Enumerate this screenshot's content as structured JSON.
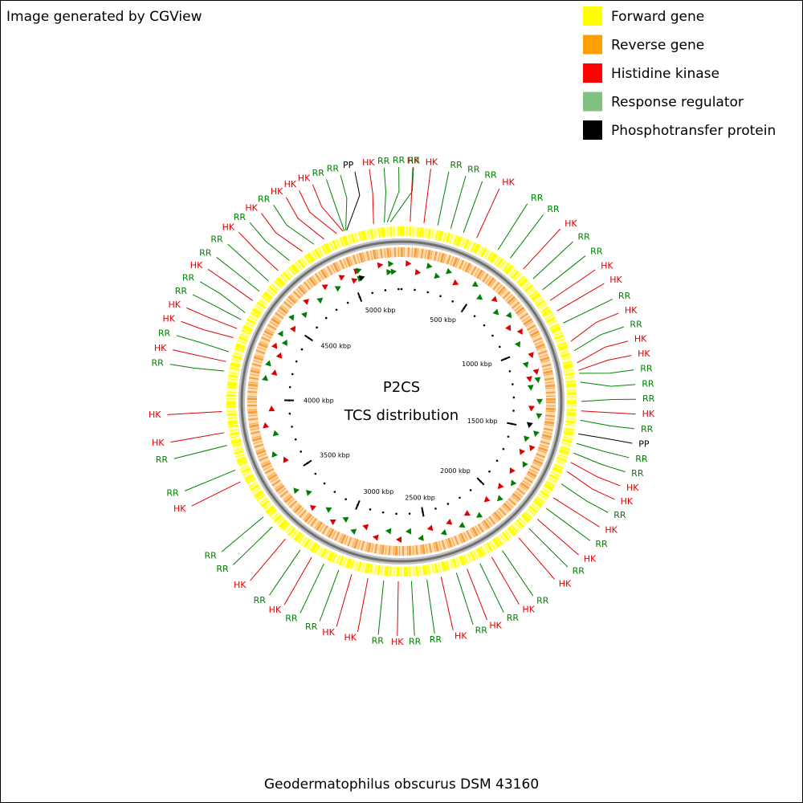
{
  "header": {
    "text": "Image generated by CGView"
  },
  "legend": [
    {
      "label": "Forward gene",
      "color": "#ffff00"
    },
    {
      "label": "Reverse gene",
      "color": "#ffa000"
    },
    {
      "label": "Histidine kinase",
      "color": "#ff0000"
    },
    {
      "label": "Response regulator",
      "color": "#80c080"
    },
    {
      "label": "Phosphotransfer protein",
      "color": "#000000"
    }
  ],
  "center": {
    "title": "P2CS",
    "subtitle": "TCS distribution"
  },
  "footer": {
    "text": "Geodermatophilus obscurus DSM 43160"
  },
  "map": {
    "range": [
      0,
      5322
    ],
    "ticks": [
      {
        "value": 500,
        "label": "500 kbp"
      },
      {
        "value": 1000,
        "label": "1000 kbp"
      },
      {
        "value": 1500,
        "label": "1500 kbp"
      },
      {
        "value": 2000,
        "label": "2000 kbp"
      },
      {
        "value": 2500,
        "label": "2500 kbp"
      },
      {
        "value": 3000,
        "label": "3000 kbp"
      },
      {
        "value": 3500,
        "label": "3500 kbp"
      },
      {
        "value": 4000,
        "label": "4000 kbp"
      },
      {
        "value": 4500,
        "label": "4500 kbp"
      },
      {
        "value": 5000,
        "label": "5000 kbp"
      }
    ],
    "features": [
      {
        "label": "HK",
        "position": 41,
        "color": "#e00000"
      },
      {
        "label": "HK",
        "position": 106,
        "color": "#e00000"
      },
      {
        "label": "RR",
        "position": 172,
        "color": "#008000"
      },
      {
        "label": "RR",
        "position": 235,
        "color": "#008000"
      },
      {
        "label": "RR",
        "position": 298,
        "color": "#008000"
      },
      {
        "label": "HK",
        "position": 365,
        "color": "#e00000"
      },
      {
        "label": "RR",
        "position": 480,
        "color": "#008000"
      },
      {
        "label": "RR",
        "position": 550,
        "color": "#008000"
      },
      {
        "label": "HK",
        "position": 630,
        "color": "#e00000"
      },
      {
        "label": "RR",
        "position": 695,
        "color": "#008000"
      },
      {
        "label": "RR",
        "position": 763,
        "color": "#008000"
      },
      {
        "label": "HK",
        "position": 825,
        "color": "#e00000"
      },
      {
        "label": "HK",
        "position": 884,
        "color": "#e00000"
      },
      {
        "label": "RR",
        "position": 948,
        "color": "#008000"
      },
      {
        "label": "HK",
        "position": 1041,
        "color": "#e00000"
      },
      {
        "label": "RR",
        "position": 1088,
        "color": "#008000"
      },
      {
        "label": "HK",
        "position": 1147,
        "color": "#e00000"
      },
      {
        "label": "HK",
        "position": 1183,
        "color": "#e00000"
      },
      {
        "label": "RR",
        "position": 1197,
        "color": "#008000"
      },
      {
        "label": "RR",
        "position": 1239,
        "color": "#008000"
      },
      {
        "label": "RR",
        "position": 1330,
        "color": "#008000"
      },
      {
        "label": "HK",
        "position": 1375,
        "color": "#e00000"
      },
      {
        "label": "RR",
        "position": 1419,
        "color": "#008000"
      },
      {
        "label": "PP",
        "position": 1484,
        "color": "#000000"
      },
      {
        "label": "RR",
        "position": 1530,
        "color": "#008000"
      },
      {
        "label": "RR",
        "position": 1577,
        "color": "#008000"
      },
      {
        "label": "HK",
        "position": 1623,
        "color": "#e00000"
      },
      {
        "label": "HK",
        "position": 1669,
        "color": "#e00000"
      },
      {
        "label": "RR",
        "position": 1734,
        "color": "#008000"
      },
      {
        "label": "HK",
        "position": 1809,
        "color": "#e00000"
      },
      {
        "label": "RR",
        "position": 1869,
        "color": "#008000"
      },
      {
        "label": "HK",
        "position": 1935,
        "color": "#e00000"
      },
      {
        "label": "RR",
        "position": 1994,
        "color": "#008000"
      },
      {
        "label": "HK",
        "position": 2059,
        "color": "#e00000"
      },
      {
        "label": "RR",
        "position": 2157,
        "color": "#008000"
      },
      {
        "label": "HK",
        "position": 2216,
        "color": "#e00000"
      },
      {
        "label": "RR",
        "position": 2279,
        "color": "#008000"
      },
      {
        "label": "HK",
        "position": 2345,
        "color": "#e00000"
      },
      {
        "label": "RR",
        "position": 2398,
        "color": "#008000"
      },
      {
        "label": "HK",
        "position": 2473,
        "color": "#e00000"
      },
      {
        "label": "RR",
        "position": 2541,
        "color": "#008000"
      },
      {
        "label": "RR",
        "position": 2614,
        "color": "#008000"
      },
      {
        "label": "HK",
        "position": 2676,
        "color": "#e00000"
      },
      {
        "label": "RR",
        "position": 2745,
        "color": "#008000"
      },
      {
        "label": "HK",
        "position": 2820,
        "color": "#e00000"
      },
      {
        "label": "HK",
        "position": 2899,
        "color": "#e00000"
      },
      {
        "label": "RR",
        "position": 2963,
        "color": "#008000"
      },
      {
        "label": "RR",
        "position": 3039,
        "color": "#008000"
      },
      {
        "label": "HK",
        "position": 3104,
        "color": "#e00000"
      },
      {
        "label": "RR",
        "position": 3168,
        "color": "#008000"
      },
      {
        "label": "HK",
        "position": 3255,
        "color": "#e00000"
      },
      {
        "label": "RR",
        "position": 3339,
        "color": "#008000"
      },
      {
        "label": "RR",
        "position": 3402,
        "color": "#008000"
      },
      {
        "label": "HK",
        "position": 3600,
        "color": "#e00000"
      },
      {
        "label": "RR",
        "position": 3660,
        "color": "#008000"
      },
      {
        "label": "RR",
        "position": 3783,
        "color": "#008000"
      },
      {
        "label": "HK",
        "position": 3844,
        "color": "#e00000"
      },
      {
        "label": "HK",
        "position": 3944,
        "color": "#e00000"
      },
      {
        "label": "RR",
        "position": 4136,
        "color": "#008000"
      },
      {
        "label": "HK",
        "position": 4181,
        "color": "#e00000"
      },
      {
        "label": "RR",
        "position": 4229,
        "color": "#008000"
      },
      {
        "label": "HK",
        "position": 4299,
        "color": "#e00000"
      },
      {
        "label": "HK",
        "position": 4345,
        "color": "#e00000"
      },
      {
        "label": "RR",
        "position": 4391,
        "color": "#008000"
      },
      {
        "label": "RR",
        "position": 4429,
        "color": "#008000"
      },
      {
        "label": "HK",
        "position": 4496,
        "color": "#e00000"
      },
      {
        "label": "RR",
        "position": 4550,
        "color": "#008000"
      },
      {
        "label": "RR",
        "position": 4615,
        "color": "#008000"
      },
      {
        "label": "HK",
        "position": 4682,
        "color": "#e00000"
      },
      {
        "label": "RR",
        "position": 4753,
        "color": "#008000"
      },
      {
        "label": "HK",
        "position": 4828,
        "color": "#e00000"
      },
      {
        "label": "RR",
        "position": 4892,
        "color": "#008000"
      },
      {
        "label": "HK",
        "position": 4945,
        "color": "#e00000"
      },
      {
        "label": "HK",
        "position": 5010,
        "color": "#e00000"
      },
      {
        "label": "HK",
        "position": 5042,
        "color": "#e00000"
      },
      {
        "label": "RR",
        "position": 5048,
        "color": "#008000"
      },
      {
        "label": "RR",
        "position": 5055,
        "color": "#008000"
      },
      {
        "label": "PP",
        "position": 5060,
        "color": "#000000"
      },
      {
        "label": "HK",
        "position": 5190,
        "color": "#e00000"
      },
      {
        "label": "RR",
        "position": 5241,
        "color": "#008000"
      },
      {
        "label": "RR",
        "position": 5255,
        "color": "#008000"
      },
      {
        "label": "RR",
        "position": 5270,
        "color": "#008000"
      }
    ]
  }
}
